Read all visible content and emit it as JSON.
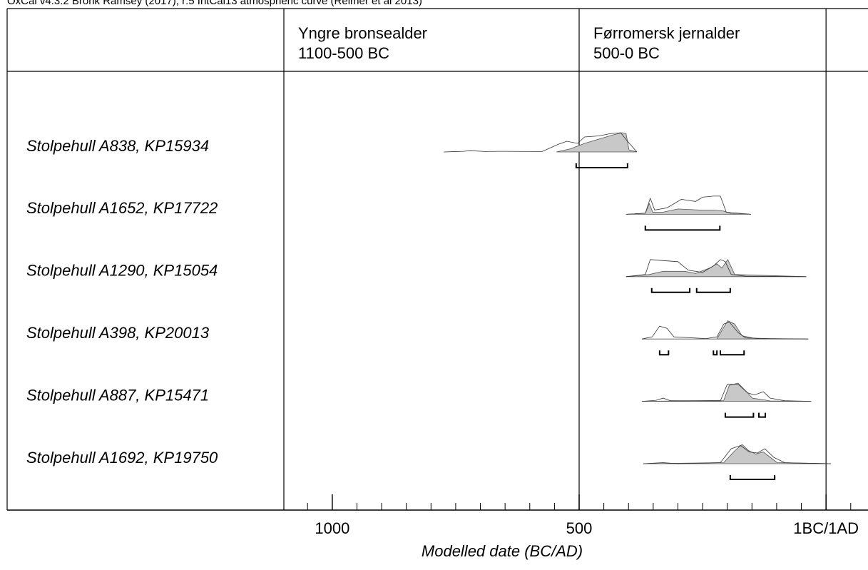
{
  "chart_data": {
    "type": "oxcal",
    "title": "OxCal v4.3.2 Bronk Ramsey (2017); r:5 IntCal13 atmospheric curve (Reimer et al 2013)",
    "xlabel": "Modelled date (BC/AD)",
    "xlim": [
      1098,
      -85
    ],
    "xticks": [
      1000,
      500,
      {
        "value": 0,
        "label": "1BC/1AD"
      }
    ],
    "xminorticks": [
      1050,
      950,
      900,
      850,
      800,
      750,
      700,
      650,
      600,
      550,
      450,
      400,
      350,
      300,
      250,
      200,
      150,
      100,
      50,
      -50
    ],
    "grid": true,
    "periods": [
      {
        "name": "Yngre bronsealder",
        "dates": "1100-500 BC"
      },
      {
        "name": "Førromersk jernalder",
        "dates": "500-0 BC"
      }
    ],
    "rows": [
      {
        "label": "Stolpehull A838, KP15934",
        "prior": {
          "x": [
            774,
            734,
            720,
            691,
            662,
            575,
            543,
            525,
            503,
            489,
            460,
            438,
            416,
            402,
            383
          ],
          "density": [
            0,
            0.03,
            0.06,
            0.02,
            0.03,
            0.02,
            0.35,
            0.5,
            0.4,
            0.7,
            0.75,
            0.85,
            0.9,
            0.5,
            0
          ]
        },
        "posterior": {
          "x": [
            546,
            517,
            489,
            460,
            431,
            413,
            405,
            399,
            383
          ],
          "density": [
            0,
            0.15,
            0.4,
            0.6,
            0.8,
            0.9,
            0.85,
            0.1,
            0
          ]
        },
        "ranges": [
          [
            506,
            402
          ]
        ]
      },
      {
        "label": "Stolpehull A1652, KP17722",
        "prior": {
          "x": [
            405,
            366,
            356,
            347,
            322,
            293,
            264,
            250,
            228,
            214,
            202,
            152
          ],
          "density": [
            0,
            0.05,
            0.75,
            0.2,
            0.3,
            0.7,
            0.6,
            0.8,
            0.85,
            0.85,
            0.1,
            0
          ]
        },
        "posterior": {
          "x": [
            405,
            366,
            358,
            351,
            330,
            300,
            257,
            228,
            207,
            192,
            152
          ],
          "density": [
            0,
            0.05,
            0.5,
            0.1,
            0.1,
            0.25,
            0.2,
            0.2,
            0.15,
            0.03,
            0
          ]
        },
        "ranges": [
          [
            366,
            215
          ]
        ]
      },
      {
        "label": "Stolpehull A1290, KP15054",
        "prior": {
          "x": [
            405,
            366,
            356,
            330,
            300,
            279,
            250,
            228,
            214,
            204,
            192,
            163,
            40
          ],
          "density": [
            0,
            0.1,
            0.8,
            0.75,
            0.7,
            0.3,
            0.2,
            0.5,
            0.8,
            0.7,
            0.1,
            0.02,
            0
          ]
        },
        "posterior": {
          "x": [
            405,
            358,
            330,
            286,
            264,
            236,
            221,
            211,
            199,
            185,
            40
          ],
          "density": [
            0,
            0.1,
            0.25,
            0.25,
            0.15,
            0.4,
            0.6,
            0.4,
            0.8,
            0.1,
            0
          ]
        },
        "ranges": [
          [
            353,
            276
          ],
          [
            262,
            194
          ]
        ]
      },
      {
        "label": "Stolpehull A398, KP20013",
        "prior": {
          "x": [
            373,
            352,
            337,
            322,
            308,
            243,
            221,
            207,
            196,
            178,
            163,
            113,
            36
          ],
          "density": [
            0,
            0.1,
            0.6,
            0.5,
            0.1,
            0.02,
            0.1,
            0.7,
            0.8,
            0.3,
            0.05,
            0.02,
            0
          ]
        },
        "posterior": {
          "x": [
            373,
            221,
            211,
            199,
            185,
            170,
            142,
            36
          ],
          "density": [
            0,
            0,
            0.4,
            0.85,
            0.7,
            0.15,
            0.02,
            0
          ]
        },
        "ranges": [
          [
            337,
            319
          ],
          [
            228,
            221
          ],
          [
            214,
            166
          ]
        ]
      },
      {
        "label": "Stolpehull A887, KP15471",
        "prior": {
          "x": [
            373,
            344,
            330,
            315,
            214,
            200,
            178,
            159,
            145,
            127,
            113,
            84,
            30
          ],
          "density": [
            0,
            0.05,
            0.15,
            0.03,
            0.02,
            0.8,
            0.8,
            0.4,
            0.3,
            0.45,
            0.15,
            0.03,
            0
          ]
        },
        "posterior": {
          "x": [
            373,
            207,
            196,
            178,
            163,
            149,
            134,
            113,
            30
          ],
          "density": [
            0,
            0.05,
            0.75,
            0.85,
            0.5,
            0.15,
            0.1,
            0.02,
            0
          ]
        },
        "ranges": [
          [
            204,
            147
          ],
          [
            136,
            123
          ]
        ]
      },
      {
        "label": "Stolpehull A1692, KP19750",
        "prior": {
          "x": [
            370,
            330,
            300,
            214,
            192,
            173,
            156,
            139,
            124,
            106,
            84,
            55,
            -10
          ],
          "density": [
            0,
            0.05,
            0,
            0.05,
            0.7,
            0.85,
            0.55,
            0.5,
            0.7,
            0.3,
            0.05,
            0.03,
            0
          ]
        },
        "posterior": {
          "x": [
            370,
            207,
            185,
            170,
            156,
            142,
            127,
            113,
            99,
            -10
          ],
          "density": [
            0,
            0.05,
            0.6,
            0.9,
            0.6,
            0.45,
            0.55,
            0.3,
            0.05,
            0
          ]
        },
        "ranges": [
          [
            194,
            104
          ]
        ]
      }
    ]
  }
}
